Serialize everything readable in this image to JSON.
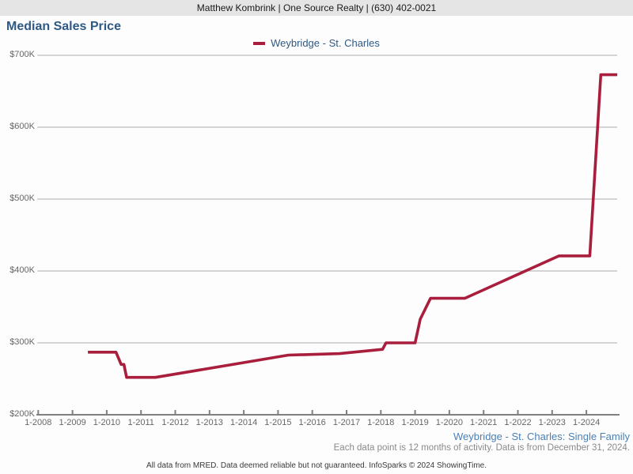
{
  "header": {
    "text": "Matthew Kombrink | One Source Realty | (630) 402-0021"
  },
  "title": "Median Sales Price",
  "legend": {
    "label": "Weybridge - St. Charles",
    "color": "#a81e3c"
  },
  "chart_data": {
    "type": "line",
    "title": "Median Sales Price",
    "xlabel": "",
    "ylabel": "",
    "grid": true,
    "legend_position": "top-center",
    "ylim": [
      200000,
      700000
    ],
    "x_range": [
      2008,
      2024.92
    ],
    "y_ticks": [
      {
        "label": "$700K",
        "value": 700000
      },
      {
        "label": "$600K",
        "value": 600000
      },
      {
        "label": "$500K",
        "value": 500000
      },
      {
        "label": "$400K",
        "value": 400000
      },
      {
        "label": "$300K",
        "value": 300000
      },
      {
        "label": "$200K",
        "value": 200000
      }
    ],
    "x_ticks": [
      "1-2008",
      "1-2009",
      "1-2010",
      "1-2011",
      "1-2012",
      "1-2013",
      "1-2014",
      "1-2015",
      "1-2016",
      "1-2017",
      "1-2018",
      "1-2019",
      "1-2020",
      "1-2021",
      "1-2022",
      "1-2023",
      "1-2024"
    ],
    "series": [
      {
        "name": "Weybridge - St. Charles",
        "color": "#a81e3c",
        "points": [
          [
            2009.45,
            287000
          ],
          [
            2010.27,
            287000
          ],
          [
            2010.42,
            270000
          ],
          [
            2010.5,
            270000
          ],
          [
            2010.58,
            252000
          ],
          [
            2011.42,
            252000
          ],
          [
            2015.3,
            283000
          ],
          [
            2016.8,
            285000
          ],
          [
            2018.05,
            291000
          ],
          [
            2018.15,
            300000
          ],
          [
            2019.0,
            300000
          ],
          [
            2019.15,
            333000
          ],
          [
            2019.45,
            362000
          ],
          [
            2020.45,
            362000
          ],
          [
            2023.2,
            421000
          ],
          [
            2024.1,
            421000
          ],
          [
            2024.42,
            673000
          ],
          [
            2024.9,
            673000
          ]
        ]
      }
    ]
  },
  "footer": {
    "series_caption": "Weybridge - St. Charles: Single Family",
    "data_note": "Each data point is 12 months of activity. Data is from December 31, 2024.",
    "disclaimer": "All data from MRED. Data deemed reliable but not guaranteed. InfoSparks © 2024 ShowingTime."
  }
}
